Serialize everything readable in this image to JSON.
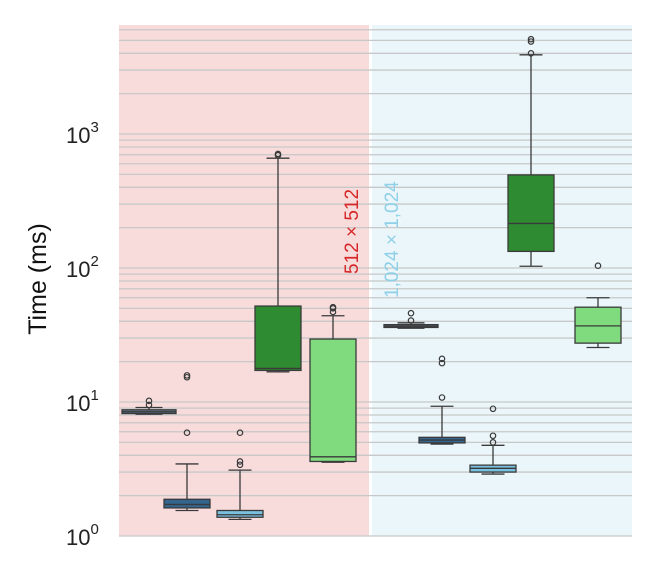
{
  "chart_data": {
    "type": "box",
    "ylabel": "Time (ms)",
    "yscale": "log",
    "ylim": [
      1,
      6000
    ],
    "yticks": [
      {
        "value": 1,
        "label": "10",
        "exp": "0"
      },
      {
        "value": 10,
        "label": "10",
        "exp": "1"
      },
      {
        "value": 100,
        "label": "10",
        "exp": "2"
      },
      {
        "value": 1000,
        "label": "10",
        "exp": "3"
      }
    ],
    "grid": true,
    "groups": [
      {
        "label": "512 × 512",
        "label_color": "#d62728",
        "background": "#f8dcdc"
      },
      {
        "label": "1,024 × 1,024",
        "label_color": "#8fd0e8",
        "background": "#eaf6fa"
      }
    ],
    "boxes": [
      {
        "group": 0,
        "color": "#5e7891",
        "whislo": 8.1,
        "q1": 8.2,
        "med": 8.45,
        "q3": 8.75,
        "whishi": 9.1,
        "fliers": [
          9.5,
          10.2
        ]
      },
      {
        "group": 0,
        "color": "#33658f",
        "whislo": 1.55,
        "q1": 1.62,
        "med": 1.72,
        "q3": 1.88,
        "whishi": 3.45,
        "fliers": [
          5.9,
          15.3,
          15.8
        ]
      },
      {
        "group": 0,
        "color": "#79c0df",
        "whislo": 1.33,
        "q1": 1.38,
        "med": 1.44,
        "q3": 1.55,
        "whishi": 3.1,
        "fliers": [
          3.4,
          3.6,
          5.9
        ]
      },
      {
        "group": 0,
        "color": "#2e8b31",
        "whislo": 16.8,
        "q1": 17.2,
        "med": 17.8,
        "q3": 52,
        "whishi": 660,
        "fliers": [
          695,
          710
        ]
      },
      {
        "group": 0,
        "color": "#80db7f",
        "whislo": 3.55,
        "q1": 3.6,
        "med": 3.9,
        "q3": 29.5,
        "whishi": 44,
        "fliers": [
          47,
          50,
          51
        ]
      },
      {
        "group": 1,
        "color": "#5e7891",
        "whislo": 35.5,
        "q1": 36,
        "med": 36.8,
        "q3": 37.8,
        "whishi": 39,
        "fliers": [
          40.5,
          46
        ]
      },
      {
        "group": 1,
        "color": "#33658f",
        "whislo": 4.85,
        "q1": 4.95,
        "med": 5.2,
        "q3": 5.45,
        "whishi": 9.3,
        "fliers": [
          10.8,
          19.5,
          21
        ]
      },
      {
        "group": 1,
        "color": "#79c0df",
        "whislo": 2.9,
        "q1": 3.0,
        "med": 3.2,
        "q3": 3.38,
        "whishi": 4.75,
        "fliers": [
          5.0,
          5.6,
          8.9
        ]
      },
      {
        "group": 1,
        "color": "#2e8b31",
        "whislo": 103,
        "q1": 133,
        "med": 215,
        "q3": 495,
        "whishi": 3900,
        "fliers": [
          4000,
          4900,
          5100
        ]
      },
      {
        "group": 1,
        "color": "#80db7f",
        "whislo": 25.5,
        "q1": 27.5,
        "med": 37,
        "q3": 51,
        "whishi": 60,
        "fliers": [
          104
        ]
      }
    ]
  }
}
